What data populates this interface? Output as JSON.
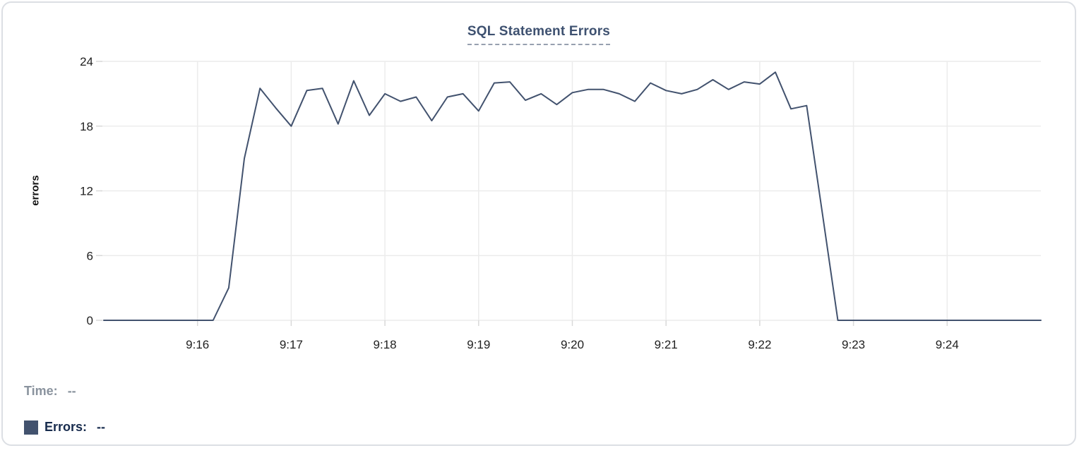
{
  "chart": {
    "title": "SQL Statement Errors",
    "y_axis_title": "errors"
  },
  "chart_data": {
    "type": "line",
    "title": "SQL Statement Errors",
    "xlabel": "",
    "ylabel": "errors",
    "ylim": [
      0,
      24
    ],
    "y_ticks": [
      0,
      6,
      12,
      18,
      24
    ],
    "x_ticks": [
      "9:16",
      "9:17",
      "9:18",
      "9:19",
      "9:20",
      "9:21",
      "9:22",
      "9:23",
      "9:24"
    ],
    "x_range": [
      "9:15:00",
      "9:25:00"
    ],
    "grid": true,
    "legend_position": "bottom-left",
    "series": [
      {
        "name": "Errors",
        "color": "#42526e",
        "sample_interval_seconds": 10,
        "x": [
          "9:15:00",
          "9:15:10",
          "9:15:20",
          "9:15:30",
          "9:15:40",
          "9:15:50",
          "9:16:00",
          "9:16:10",
          "9:16:20",
          "9:16:30",
          "9:16:40",
          "9:16:50",
          "9:17:00",
          "9:17:10",
          "9:17:20",
          "9:17:30",
          "9:17:40",
          "9:17:50",
          "9:18:00",
          "9:18:10",
          "9:18:20",
          "9:18:30",
          "9:18:40",
          "9:18:50",
          "9:19:00",
          "9:19:10",
          "9:19:20",
          "9:19:30",
          "9:19:40",
          "9:19:50",
          "9:20:00",
          "9:20:10",
          "9:20:20",
          "9:20:30",
          "9:20:40",
          "9:20:50",
          "9:21:00",
          "9:21:10",
          "9:21:20",
          "9:21:30",
          "9:21:40",
          "9:21:50",
          "9:22:00",
          "9:22:10",
          "9:22:20",
          "9:22:30",
          "9:22:40",
          "9:22:50",
          "9:23:00",
          "9:23:10",
          "9:23:20",
          "9:23:30",
          "9:23:40",
          "9:23:50",
          "9:24:00",
          "9:24:10",
          "9:24:20",
          "9:24:30",
          "9:24:40",
          "9:24:50",
          "9:25:00"
        ],
        "values": [
          0,
          0,
          0,
          0,
          0,
          0,
          0,
          0,
          3,
          15,
          21.5,
          19.7,
          18,
          21.3,
          21.5,
          18.2,
          22.2,
          19,
          21,
          20.3,
          20.7,
          18.5,
          20.7,
          21,
          19.4,
          22,
          22.1,
          20.4,
          21,
          20,
          21.1,
          21.4,
          21.4,
          21,
          20.3,
          22,
          21.3,
          21,
          21.4,
          22.3,
          21.4,
          22.1,
          21.9,
          23,
          19.6,
          19.9,
          10,
          0,
          0,
          0,
          0,
          0,
          0,
          0,
          0,
          0,
          0,
          0,
          0,
          0,
          0
        ]
      }
    ]
  },
  "legend": {
    "time_label": "Time:",
    "time_value": "--",
    "errors_label": "Errors:",
    "errors_value": "--",
    "swatch_color": "#42526e"
  },
  "colors": {
    "line": "#42526e",
    "title_text": "#3e5170",
    "title_underline": "#97a0af",
    "grid": "#ececec",
    "tick_stub": "#d9d9d9",
    "axis_text": "#1f1f1f",
    "time_label_text": "#8a939e",
    "errors_label_text": "#172b4d",
    "card_border": "#dcdfe4"
  }
}
